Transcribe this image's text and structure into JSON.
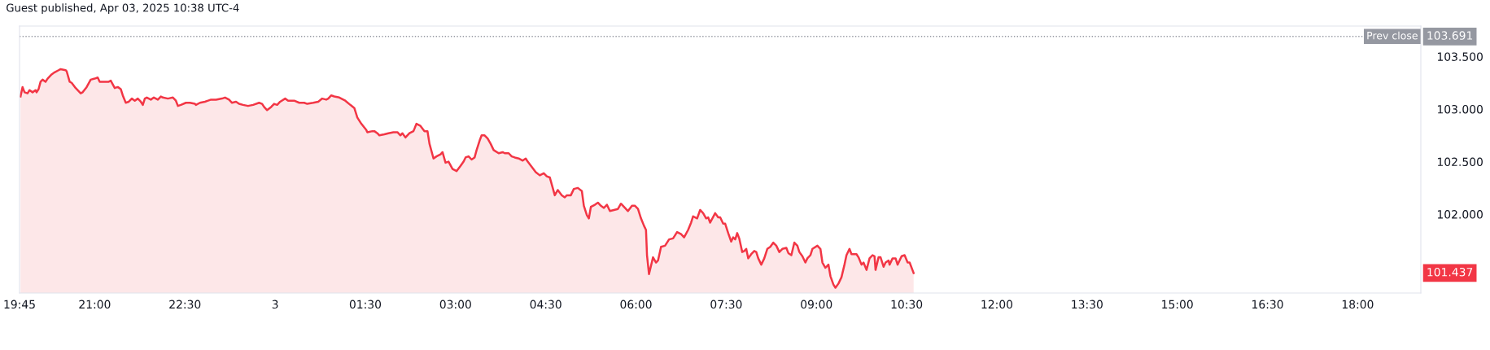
{
  "chart_data": {
    "type": "area",
    "title": "Guest published, Apr 03, 2025 10:38 UTC-4",
    "xlim": [
      "2025-04-02T19:45",
      "2025-04-03T19:03"
    ],
    "ylim": [
      101.25,
      103.79
    ],
    "xticks": [
      {
        "value": "2025-04-02T19:45",
        "label": "19:45"
      },
      {
        "value": "2025-04-02T21:00",
        "label": "21:00"
      },
      {
        "value": "2025-04-02T22:30",
        "label": "22:30"
      },
      {
        "value": "2025-04-03T00:00",
        "label": "3"
      },
      {
        "value": "2025-04-03T01:30",
        "label": "01:30"
      },
      {
        "value": "2025-04-03T03:00",
        "label": "03:00"
      },
      {
        "value": "2025-04-03T04:30",
        "label": "04:30"
      },
      {
        "value": "2025-04-03T06:00",
        "label": "06:00"
      },
      {
        "value": "2025-04-03T07:30",
        "label": "07:30"
      },
      {
        "value": "2025-04-03T09:00",
        "label": "09:00"
      },
      {
        "value": "2025-04-03T10:30",
        "label": "10:30"
      },
      {
        "value": "2025-04-03T12:00",
        "label": "12:00"
      },
      {
        "value": "2025-04-03T13:30",
        "label": "13:30"
      },
      {
        "value": "2025-04-03T15:00",
        "label": "15:00"
      },
      {
        "value": "2025-04-03T16:30",
        "label": "16:30"
      },
      {
        "value": "2025-04-03T18:00",
        "label": "18:00"
      }
    ],
    "yticks": [
      {
        "value": 102,
        "label": "102.000"
      },
      {
        "value": 102.5,
        "label": "102.500"
      },
      {
        "value": 103,
        "label": "103.000"
      },
      {
        "value": 103.5,
        "label": "103.500"
      }
    ],
    "grid": false,
    "ref_lines": [
      {
        "axis": "y",
        "value": 103.691,
        "label": "Prev close",
        "color": "#9598a1",
        "line_style": "dotted"
      }
    ],
    "annotations": [
      "103.691",
      "101.437"
    ],
    "series": [
      {
        "color": "#f23645",
        "x": [
          "2025-04-02T19:46",
          "2025-04-02T19:48",
          "2025-04-02T19:50",
          "2025-04-02T19:53",
          "2025-04-02T19:55",
          "2025-04-02T19:58",
          "2025-04-02T20:01",
          "2025-04-02T20:02",
          "2025-04-02T20:04",
          "2025-04-02T20:06",
          "2025-04-02T20:08",
          "2025-04-02T20:11",
          "2025-04-02T20:13",
          "2025-04-02T20:17",
          "2025-04-02T20:20",
          "2025-04-02T20:24",
          "2025-04-02T20:26",
          "2025-04-02T20:31",
          "2025-04-02T20:32",
          "2025-04-02T20:35",
          "2025-04-02T20:37",
          "2025-04-02T20:41",
          "2025-04-02T20:46",
          "2025-04-02T20:48",
          "2025-04-02T20:52",
          "2025-04-02T20:56",
          "2025-04-02T21:00",
          "2025-04-02T21:03",
          "2025-04-02T21:05",
          "2025-04-02T21:10",
          "2025-04-02T21:14",
          "2025-04-02T21:16",
          "2025-04-02T21:20",
          "2025-04-02T21:23",
          "2025-04-02T21:26",
          "2025-04-02T21:28",
          "2025-04-02T21:31",
          "2025-04-02T21:34",
          "2025-04-02T21:37",
          "2025-04-02T21:40",
          "2025-04-02T21:43",
          "2025-04-02T21:46",
          "2025-04-02T21:48",
          "2025-04-02T21:50",
          "2025-04-02T21:52",
          "2025-04-02T21:56",
          "2025-04-02T21:59",
          "2025-04-02T22:03",
          "2025-04-02T22:06",
          "2025-04-02T22:08",
          "2025-04-02T22:13",
          "2025-04-02T22:18",
          "2025-04-02T22:21",
          "2025-04-02T22:23",
          "2025-04-02T22:26",
          "2025-04-02T22:31",
          "2025-04-02T22:35",
          "2025-04-02T22:40",
          "2025-04-02T22:41",
          "2025-04-02T22:45",
          "2025-04-02T22:50",
          "2025-04-02T22:56",
          "2025-04-02T23:01",
          "2025-04-02T23:07",
          "2025-04-02T23:10",
          "2025-04-02T23:14",
          "2025-04-02T23:17",
          "2025-04-02T23:21",
          "2025-04-02T23:24",
          "2025-04-02T23:28",
          "2025-04-02T23:33",
          "2025-04-02T23:38",
          "2025-04-02T23:44",
          "2025-04-02T23:47",
          "2025-04-02T23:49",
          "2025-04-02T23:52",
          "2025-04-02T23:56",
          "2025-04-02T23:59",
          "2025-04-03T00:02",
          "2025-04-03T00:05",
          "2025-04-03T00:10",
          "2025-04-03T00:13",
          "2025-04-03T00:19",
          "2025-04-03T00:24",
          "2025-04-03T00:29",
          "2025-04-03T00:32",
          "2025-04-03T00:38",
          "2025-04-03T00:43",
          "2025-04-03T00:47",
          "2025-04-03T00:51",
          "2025-04-03T00:53",
          "2025-04-03T00:56",
          "2025-04-03T00:59",
          "2025-04-03T01:04",
          "2025-04-03T01:10",
          "2025-04-03T01:15",
          "2025-04-03T01:19",
          "2025-04-03T01:22",
          "2025-04-03T01:26",
          "2025-04-03T01:31",
          "2025-04-03T01:32",
          "2025-04-03T01:37",
          "2025-04-03T01:39",
          "2025-04-03T01:42",
          "2025-04-03T01:44",
          "2025-04-03T01:49",
          "2025-04-03T01:53",
          "2025-04-03T01:58",
          "2025-04-03T02:02",
          "2025-04-03T02:05",
          "2025-04-03T02:07",
          "2025-04-03T02:10",
          "2025-04-03T02:14",
          "2025-04-03T02:18",
          "2025-04-03T02:21",
          "2025-04-03T02:25",
          "2025-04-03T02:29",
          "2025-04-03T02:32",
          "2025-04-03T02:34",
          "2025-04-03T02:38",
          "2025-04-03T02:41",
          "2025-04-03T02:45",
          "2025-04-03T02:47",
          "2025-04-03T02:50",
          "2025-04-03T02:53",
          "2025-04-03T02:57",
          "2025-04-03T03:01",
          "2025-04-03T03:05",
          "2025-04-03T03:08",
          "2025-04-03T03:10",
          "2025-04-03T03:13",
          "2025-04-03T03:16",
          "2025-04-03T03:19",
          "2025-04-03T03:21",
          "2025-04-03T03:24",
          "2025-04-03T03:26",
          "2025-04-03T03:29",
          "2025-04-03T03:32",
          "2025-04-03T03:35",
          "2025-04-03T03:38",
          "2025-04-03T03:43",
          "2025-04-03T03:47",
          "2025-04-03T03:49",
          "2025-04-03T03:53",
          "2025-04-03T03:56",
          "2025-04-03T03:59",
          "2025-04-03T04:03",
          "2025-04-03T04:07",
          "2025-04-03T04:10",
          "2025-04-03T04:12",
          "2025-04-03T04:16",
          "2025-04-03T04:20",
          "2025-04-03T04:24",
          "2025-04-03T04:28",
          "2025-04-03T04:31",
          "2025-04-03T04:34",
          "2025-04-03T04:39",
          "2025-04-03T04:42",
          "2025-04-03T04:46",
          "2025-04-03T04:49",
          "2025-04-03T04:51",
          "2025-04-03T04:55",
          "2025-04-03T04:58",
          "2025-04-03T05:02",
          "2025-04-03T05:06",
          "2025-04-03T05:08",
          "2025-04-03T05:11",
          "2025-04-03T05:13",
          "2025-04-03T05:15",
          "2025-04-03T05:19",
          "2025-04-03T05:22",
          "2025-04-03T05:25",
          "2025-04-03T05:28",
          "2025-04-03T05:31",
          "2025-04-03T05:34",
          "2025-04-03T05:38",
          "2025-04-03T05:42",
          "2025-04-03T05:45",
          "2025-04-03T05:49",
          "2025-04-03T05:52",
          "2025-04-03T05:56",
          "2025-04-03T05:59",
          "2025-04-03T06:02",
          "2025-04-03T06:05",
          "2025-04-03T06:08",
          "2025-04-03T06:10",
          "2025-04-03T06:11",
          "2025-04-03T06:13",
          "2025-04-03T06:17",
          "2025-04-03T06:20",
          "2025-04-03T06:22",
          "2025-04-03T06:25",
          "2025-04-03T06:29",
          "2025-04-03T06:33",
          "2025-04-03T06:37",
          "2025-04-03T06:41",
          "2025-04-03T06:45",
          "2025-04-03T06:48",
          "2025-04-03T06:52",
          "2025-04-03T06:55",
          "2025-04-03T06:57",
          "2025-04-03T07:01",
          "2025-04-03T07:04",
          "2025-04-03T07:07",
          "2025-04-03T07:10",
          "2025-04-03T07:12",
          "2025-04-03T07:14",
          "2025-04-03T07:19",
          "2025-04-03T07:22",
          "2025-04-03T07:24",
          "2025-04-03T07:27",
          "2025-04-03T07:29",
          "2025-04-03T07:32",
          "2025-04-03T07:35",
          "2025-04-03T07:37",
          "2025-04-03T07:39",
          "2025-04-03T07:41",
          "2025-04-03T07:43",
          "2025-04-03T07:46",
          "2025-04-03T07:48",
          "2025-04-03T07:50",
          "2025-04-03T07:52",
          "2025-04-03T07:55",
          "2025-04-03T07:58",
          "2025-04-03T08:00",
          "2025-04-03T08:02",
          "2025-04-03T08:05",
          "2025-04-03T08:08",
          "2025-04-03T08:11",
          "2025-04-03T08:14",
          "2025-04-03T08:17",
          "2025-04-03T08:20",
          "2025-04-03T08:23",
          "2025-04-03T08:26",
          "2025-04-03T08:30",
          "2025-04-03T08:32",
          "2025-04-03T08:35",
          "2025-04-03T08:38",
          "2025-04-03T08:41",
          "2025-04-03T08:43",
          "2025-04-03T08:46",
          "2025-04-03T08:49",
          "2025-04-03T08:51",
          "2025-04-03T08:54",
          "2025-04-03T08:56",
          "2025-04-03T09:01",
          "2025-04-03T09:04",
          "2025-04-03T09:06",
          "2025-04-03T09:09",
          "2025-04-03T09:12",
          "2025-04-03T09:14",
          "2025-04-03T09:17",
          "2025-04-03T09:19",
          "2025-04-03T09:22",
          "2025-04-03T09:25",
          "2025-04-03T09:28",
          "2025-04-03T09:30",
          "2025-04-03T09:33",
          "2025-04-03T09:35",
          "2025-04-03T09:40",
          "2025-04-03T09:42",
          "2025-04-03T09:45",
          "2025-04-03T09:47",
          "2025-04-03T09:50",
          "2025-04-03T09:53",
          "2025-04-03T09:56",
          "2025-04-03T09:58",
          "2025-04-03T09:59",
          "2025-04-03T10:02",
          "2025-04-03T10:04",
          "2025-04-03T10:07",
          "2025-04-03T10:09",
          "2025-04-03T10:12",
          "2025-04-03T10:13",
          "2025-04-03T10:16",
          "2025-04-03T10:19",
          "2025-04-03T10:21",
          "2025-04-03T10:25",
          "2025-04-03T10:28",
          "2025-04-03T10:31",
          "2025-04-03T10:33",
          "2025-04-03T10:37"
        ],
        "values": [
          103.12,
          103.21,
          103.16,
          103.15,
          103.18,
          103.16,
          103.18,
          103.16,
          103.19,
          103.26,
          103.28,
          103.26,
          103.29,
          103.33,
          103.35,
          103.37,
          103.38,
          103.37,
          103.36,
          103.26,
          103.25,
          103.2,
          103.15,
          103.16,
          103.21,
          103.28,
          103.29,
          103.3,
          103.26,
          103.26,
          103.26,
          103.27,
          103.2,
          103.21,
          103.19,
          103.13,
          103.06,
          103.07,
          103.1,
          103.08,
          103.1,
          103.07,
          103.04,
          103.1,
          103.11,
          103.09,
          103.11,
          103.09,
          103.12,
          103.11,
          103.1,
          103.11,
          103.08,
          103.03,
          103.04,
          103.06,
          103.06,
          103.05,
          103.04,
          103.06,
          103.07,
          103.09,
          103.09,
          103.1,
          103.11,
          103.09,
          103.06,
          103.07,
          103.05,
          103.04,
          103.03,
          103.04,
          103.06,
          103.05,
          103.02,
          102.99,
          103.02,
          103.05,
          103.04,
          103.07,
          103.1,
          103.08,
          103.08,
          103.06,
          103.06,
          103.05,
          103.06,
          103.07,
          103.1,
          103.09,
          103.1,
          103.13,
          103.12,
          103.11,
          103.08,
          103.04,
          103.01,
          102.92,
          102.86,
          102.8,
          102.78,
          102.79,
          102.79,
          102.77,
          102.75,
          102.76,
          102.77,
          102.78,
          102.78,
          102.75,
          102.77,
          102.73,
          102.77,
          102.79,
          102.86,
          102.84,
          102.79,
          102.79,
          102.67,
          102.53,
          102.55,
          102.57,
          102.59,
          102.49,
          102.5,
          102.43,
          102.41,
          102.46,
          102.5,
          102.54,
          102.55,
          102.52,
          102.54,
          102.61,
          102.7,
          102.75,
          102.75,
          102.72,
          102.67,
          102.61,
          102.58,
          102.59,
          102.58,
          102.58,
          102.55,
          102.54,
          102.53,
          102.51,
          102.53,
          102.5,
          102.45,
          102.4,
          102.37,
          102.39,
          102.36,
          102.35,
          102.18,
          102.23,
          102.18,
          102.16,
          102.18,
          102.18,
          102.24,
          102.25,
          102.22,
          102.08,
          101.99,
          101.96,
          102.07,
          102.09,
          102.11,
          102.08,
          102.06,
          102.09,
          102.03,
          102.04,
          102.05,
          102.1,
          102.06,
          102.03,
          102.08,
          102.08,
          102.05,
          101.96,
          101.89,
          101.85,
          101.61,
          101.43,
          101.59,
          101.54,
          101.56,
          101.69,
          101.7,
          101.76,
          101.77,
          101.83,
          101.81,
          101.78,
          101.85,
          101.92,
          101.98,
          101.96,
          102.04,
          102.01,
          101.96,
          101.97,
          101.92,
          102.01,
          101.97,
          101.97,
          101.91,
          101.91,
          101.82,
          101.74,
          101.78,
          101.76,
          101.82,
          101.77,
          101.64,
          101.65,
          101.67,
          101.58,
          101.62,
          101.65,
          101.64,
          101.58,
          101.52,
          101.58,
          101.67,
          101.69,
          101.73,
          101.7,
          101.64,
          101.67,
          101.68,
          101.63,
          101.61,
          101.73,
          101.7,
          101.64,
          101.6,
          101.54,
          101.58,
          101.61,
          101.67,
          101.7,
          101.67,
          101.54,
          101.49,
          101.52,
          101.41,
          101.33,
          101.3,
          101.34,
          101.4,
          101.52,
          101.61,
          101.67,
          101.62,
          101.62,
          101.59,
          101.52,
          101.54,
          101.47,
          101.58,
          101.61,
          101.6,
          101.47,
          101.59,
          101.59,
          101.5,
          101.54,
          101.56,
          101.52,
          101.58,
          101.58,
          101.52,
          101.6,
          101.61,
          101.54,
          101.54,
          101.44
        ]
      }
    ]
  }
}
